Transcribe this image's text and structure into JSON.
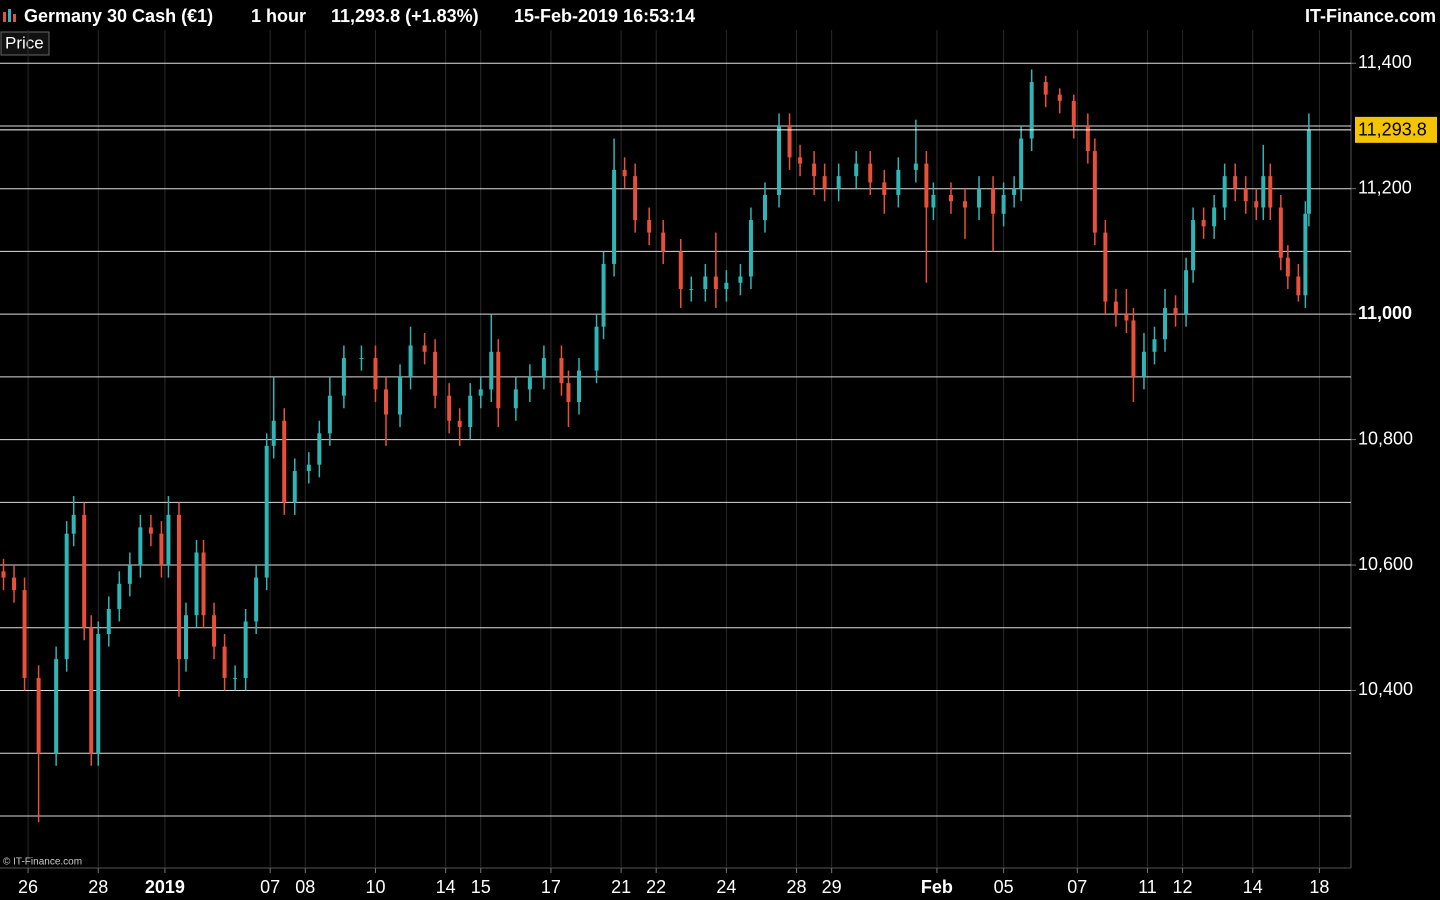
{
  "header": {
    "instrument": "Germany 30 Cash (€1)",
    "timeframe": "1 hour",
    "quote": "11,293.8 (+1.83%)",
    "timestamp": "15-Feb-2019 16:53:14",
    "brand": "IT-Finance.com"
  },
  "panel_label": "Price",
  "watermark": "© IT-Finance.com",
  "chart_data": {
    "type": "candlestick",
    "up_color": "#2fb5b5",
    "down_color": "#e8503a",
    "grid": true,
    "xlim": [
      -0.8,
      37.7
    ],
    "ylim": [
      10117,
      11453
    ],
    "xticks": [
      {
        "value": 0,
        "label": "26"
      },
      {
        "value": 2,
        "label": "28"
      },
      {
        "value": 3.9,
        "label": "2019",
        "bold": true
      },
      {
        "value": 6.9,
        "label": "07"
      },
      {
        "value": 7.9,
        "label": "08"
      },
      {
        "value": 9.9,
        "label": "10"
      },
      {
        "value": 11.9,
        "label": "14"
      },
      {
        "value": 12.9,
        "label": "15"
      },
      {
        "value": 14.9,
        "label": "17"
      },
      {
        "value": 16.9,
        "label": "21"
      },
      {
        "value": 17.9,
        "label": "22"
      },
      {
        "value": 19.9,
        "label": "24"
      },
      {
        "value": 21.9,
        "label": "28"
      },
      {
        "value": 22.9,
        "label": "29"
      },
      {
        "value": 25.9,
        "label": "Feb",
        "bold": true
      },
      {
        "value": 27.8,
        "label": "05"
      },
      {
        "value": 29.9,
        "label": "07"
      },
      {
        "value": 31.9,
        "label": "11"
      },
      {
        "value": 32.9,
        "label": "12"
      },
      {
        "value": 34.9,
        "label": "14"
      },
      {
        "value": 36.8,
        "label": "18"
      }
    ],
    "yticks": [
      {
        "value": 10400,
        "label": "10,400"
      },
      {
        "value": 10600,
        "label": "10,600"
      },
      {
        "value": 10800,
        "label": "10,800"
      },
      {
        "value": 11000,
        "label": "11,000",
        "bold": true
      },
      {
        "value": 11200,
        "label": "11,200"
      },
      {
        "value": 11400,
        "label": "11,400"
      }
    ],
    "minor_yticks": [
      10200,
      10300,
      10500,
      10700,
      10900,
      11100,
      11300
    ],
    "last_price": {
      "value": 11293.8,
      "label": "11,293.8",
      "color": "#f5c400"
    },
    "x": [
      -0.7,
      -0.4,
      -0.1,
      0.3,
      0.8,
      1.1,
      1.3,
      1.6,
      1.8,
      2.0,
      2.3,
      2.6,
      2.9,
      3.2,
      3.5,
      3.8,
      4.0,
      4.3,
      4.5,
      4.8,
      5.0,
      5.3,
      5.6,
      5.9,
      6.2,
      6.5,
      6.8,
      7.0,
      7.3,
      7.6,
      8.0,
      8.3,
      8.6,
      9.0,
      9.5,
      9.9,
      10.2,
      10.6,
      10.9,
      11.3,
      11.6,
      12.0,
      12.3,
      12.6,
      12.9,
      13.2,
      13.4,
      13.9,
      14.3,
      14.7,
      15.2,
      15.4,
      15.7,
      16.2,
      16.4,
      16.7,
      17.0,
      17.3,
      17.7,
      18.1,
      18.6,
      18.9,
      19.3,
      19.6,
      19.9,
      20.3,
      20.6,
      21.0,
      21.4,
      21.7,
      22.0,
      22.4,
      22.7,
      23.1,
      23.6,
      24.0,
      24.4,
      24.8,
      25.3,
      25.6,
      25.8,
      26.3,
      26.7,
      27.1,
      27.5,
      27.8,
      28.1,
      28.3,
      28.6,
      29.0,
      29.4,
      29.8,
      30.2,
      30.4,
      30.7,
      31.0,
      31.3,
      31.5,
      31.8,
      32.1,
      32.4,
      32.7,
      33.0,
      33.2,
      33.5,
      33.8,
      34.1,
      34.4,
      34.7,
      35.0,
      35.2,
      35.4,
      35.7,
      35.9,
      36.2,
      36.4,
      36.5
    ],
    "open": [
      10590,
      10580,
      10560,
      10420,
      10300,
      10450,
      10650,
      10680,
      10500,
      10300,
      10490,
      10530,
      10570,
      10600,
      10660,
      10650,
      10600,
      10680,
      10450,
      10520,
      10620,
      10520,
      10470,
      10420,
      10420,
      10510,
      10580,
      10790,
      10830,
      10700,
      10750,
      10760,
      10810,
      10870,
      10930,
      10930,
      10880,
      10840,
      10900,
      10950,
      10940,
      10870,
      10830,
      10820,
      10870,
      10880,
      10940,
      10850,
      10880,
      10900,
      10930,
      10890,
      10860,
      10910,
      10980,
      11080,
      11230,
      11220,
      11150,
      11130,
      11100,
      11040,
      11040,
      11060,
      11040,
      11050,
      11060,
      11150,
      11190,
      11300,
      11250,
      11240,
      11220,
      11200,
      11220,
      11240,
      11210,
      11190,
      11230,
      11240,
      11170,
      11190,
      11180,
      11170,
      11200,
      11160,
      11190,
      11200,
      11280,
      11370,
      11350,
      11340,
      11300,
      11260,
      11130,
      11020,
      11000,
      10990,
      10900,
      10940,
      10960,
      11010,
      11000,
      11070,
      11150,
      11140,
      11170,
      11220,
      11200,
      11180,
      11170,
      11220,
      11170,
      11090,
      11060,
      11030,
      11160
    ],
    "high": [
      10610,
      10600,
      10580,
      10440,
      10470,
      10670,
      10710,
      10700,
      10520,
      10510,
      10550,
      10590,
      10620,
      10680,
      10680,
      10670,
      10710,
      10700,
      10540,
      10640,
      10640,
      10540,
      10490,
      10440,
      10530,
      10600,
      10810,
      10900,
      10850,
      10770,
      10780,
      10830,
      10900,
      10950,
      10950,
      10950,
      10900,
      10920,
      10980,
      10970,
      10960,
      10890,
      10850,
      10890,
      10900,
      11000,
      10960,
      10900,
      10920,
      10950,
      10950,
      10910,
      10930,
      11000,
      11100,
      11280,
      11250,
      11240,
      11170,
      11150,
      11120,
      11060,
      11080,
      11130,
      11070,
      11080,
      11170,
      11210,
      11320,
      11320,
      11270,
      11260,
      11240,
      11240,
      11260,
      11260,
      11230,
      11250,
      11310,
      11260,
      11210,
      11210,
      11200,
      11220,
      11220,
      11210,
      11220,
      11300,
      11390,
      11380,
      11360,
      11350,
      11320,
      11280,
      11150,
      11040,
      11040,
      11010,
      10970,
      10980,
      11040,
      11030,
      11090,
      11170,
      11170,
      11190,
      11240,
      11240,
      11220,
      11200,
      11270,
      11240,
      11190,
      11110,
      11080,
      11180,
      11320
    ],
    "low": [
      10560,
      10540,
      10400,
      10190,
      10280,
      10430,
      10630,
      10480,
      10280,
      10280,
      10470,
      10510,
      10550,
      10580,
      10630,
      10580,
      10580,
      10390,
      10430,
      10500,
      10500,
      10450,
      10400,
      10400,
      10400,
      10490,
      10560,
      10770,
      10680,
      10680,
      10730,
      10740,
      10790,
      10850,
      10910,
      10860,
      10790,
      10820,
      10880,
      10920,
      10850,
      10810,
      10790,
      10800,
      10850,
      10860,
      10820,
      10830,
      10860,
      10880,
      10870,
      10820,
      10840,
      10890,
      10960,
      11060,
      11200,
      11130,
      11110,
      11080,
      11010,
      11020,
      11020,
      11010,
      11020,
      11030,
      11040,
      11130,
      11170,
      11230,
      11220,
      11190,
      11180,
      11180,
      11200,
      11190,
      11160,
      11170,
      11210,
      11050,
      11150,
      11160,
      11120,
      11150,
      11100,
      11140,
      11170,
      11180,
      11260,
      11330,
      11320,
      11280,
      11240,
      11110,
      11000,
      10980,
      10970,
      10860,
      10880,
      10920,
      10940,
      10980,
      10980,
      11050,
      11120,
      11120,
      11150,
      11180,
      11160,
      11150,
      11150,
      11150,
      11070,
      11040,
      11020,
      11010,
      11140
    ],
    "close": [
      10580,
      10560,
      10420,
      10300,
      10450,
      10650,
      10680,
      10500,
      10300,
      10490,
      10530,
      10570,
      10600,
      10660,
      10650,
      10600,
      10680,
      10450,
      10520,
      10620,
      10520,
      10470,
      10420,
      10420,
      10510,
      10580,
      10790,
      10830,
      10700,
      10750,
      10760,
      10810,
      10870,
      10930,
      10930,
      10880,
      10840,
      10900,
      10950,
      10940,
      10870,
      10830,
      10820,
      10870,
      10880,
      10940,
      10850,
      10880,
      10900,
      10930,
      10890,
      10860,
      10910,
      10980,
      11080,
      11230,
      11220,
      11150,
      11130,
      11100,
      11040,
      11040,
      11060,
      11040,
      11050,
      11060,
      11150,
      11190,
      11300,
      11250,
      11240,
      11220,
      11200,
      11220,
      11240,
      11210,
      11190,
      11230,
      11240,
      11170,
      11190,
      11180,
      11170,
      11200,
      11160,
      11190,
      11200,
      11280,
      11370,
      11350,
      11340,
      11300,
      11260,
      11130,
      11020,
      11000,
      10990,
      10900,
      10940,
      10960,
      11010,
      11000,
      11070,
      11150,
      11140,
      11170,
      11220,
      11200,
      11180,
      11170,
      11220,
      11170,
      11090,
      11060,
      11030,
      11160,
      11293.8
    ]
  }
}
